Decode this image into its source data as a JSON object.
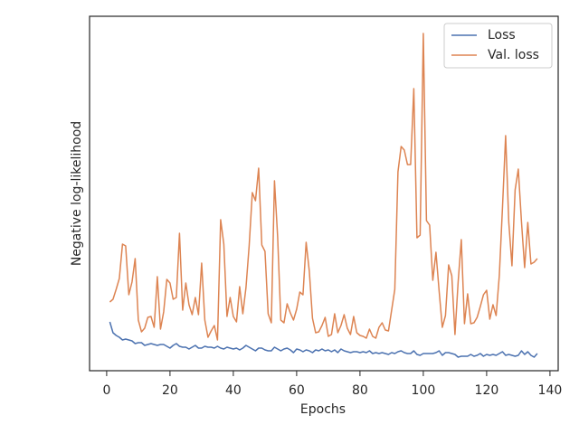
{
  "chart_data": {
    "type": "line",
    "x_label": "Epochs",
    "y_label": "Negative log-likelihood",
    "x": [
      1,
      2,
      3,
      4,
      5,
      6,
      7,
      8,
      9,
      10,
      11,
      12,
      13,
      14,
      15,
      16,
      17,
      18,
      19,
      20,
      21,
      22,
      23,
      24,
      25,
      26,
      27,
      28,
      29,
      30,
      31,
      32,
      33,
      34,
      35,
      36,
      37,
      38,
      39,
      40,
      41,
      42,
      43,
      44,
      45,
      46,
      47,
      48,
      49,
      50,
      51,
      52,
      53,
      54,
      55,
      56,
      57,
      58,
      59,
      60,
      61,
      62,
      63,
      64,
      65,
      66,
      67,
      68,
      69,
      70,
      71,
      72,
      73,
      74,
      75,
      76,
      77,
      78,
      79,
      80,
      81,
      82,
      83,
      84,
      85,
      86,
      87,
      88,
      89,
      90,
      91,
      92,
      93,
      94,
      95,
      96,
      97,
      98,
      99,
      100,
      101,
      102,
      103,
      104,
      105,
      106,
      107,
      108,
      109,
      110,
      111,
      112,
      113,
      114,
      115,
      116,
      117,
      118,
      119,
      120,
      121,
      122,
      123,
      124,
      125,
      126,
      127,
      128,
      129,
      130,
      131,
      132,
      133,
      134,
      135,
      136
    ],
    "series": [
      {
        "name": "Loss",
        "color": "#4c72b0",
        "values": [
          54,
          42,
          39,
          37,
          34,
          35,
          34,
          33,
          30,
          31,
          31,
          28,
          29,
          30,
          29,
          28,
          29,
          29,
          27,
          25,
          28,
          30,
          27,
          26,
          26,
          24,
          26,
          28,
          25,
          25,
          27,
          26,
          26,
          25,
          27,
          25,
          24,
          26,
          25,
          24,
          25,
          23,
          25,
          28,
          26,
          24,
          22,
          25,
          25,
          23,
          22,
          22,
          26,
          24,
          22,
          24,
          25,
          23,
          20,
          24,
          23,
          21,
          23,
          22,
          20,
          23,
          22,
          24,
          22,
          23,
          21,
          23,
          20,
          24,
          22,
          21,
          20,
          21,
          21,
          20,
          21,
          20,
          22,
          19,
          20,
          19,
          20,
          19,
          18,
          20,
          19,
          21,
          22,
          20,
          19,
          19,
          22,
          18,
          17,
          19,
          19,
          19,
          19,
          20,
          22,
          17,
          20,
          20,
          19,
          18,
          15,
          16,
          16,
          16,
          18,
          16,
          17,
          19,
          16,
          18,
          17,
          18,
          17,
          19,
          21,
          17,
          18,
          17,
          16,
          17,
          22,
          18,
          21,
          17,
          15,
          19
        ]
      },
      {
        "name": "Val. loss",
        "color": "#dd8452",
        "values": [
          76,
          79,
          90,
          102,
          140,
          138,
          84,
          98,
          124,
          56,
          43,
          47,
          59,
          60,
          48,
          104,
          46,
          65,
          101,
          97,
          79,
          81,
          152,
          67,
          97,
          73,
          62,
          81,
          62,
          119,
          56,
          37,
          44,
          50,
          34,
          167,
          140,
          60,
          81,
          60,
          54,
          93,
          63,
          92,
          138,
          197,
          188,
          224,
          139,
          132,
          63,
          53,
          210,
          148,
          56,
          53,
          74,
          64,
          56,
          68,
          87,
          84,
          142,
          110,
          58,
          42,
          43,
          50,
          59,
          38,
          40,
          63,
          42,
          50,
          62,
          47,
          40,
          60,
          42,
          39,
          38,
          36,
          46,
          38,
          36,
          48,
          53,
          45,
          44,
          67,
          90,
          220,
          248,
          244,
          228,
          228,
          312,
          147,
          150,
          373,
          166,
          161,
          100,
          131,
          88,
          48,
          61,
          117,
          105,
          40,
          98,
          145,
          52,
          85,
          52,
          53,
          59,
          71,
          84,
          89,
          57,
          73,
          61,
          105,
          180,
          260,
          164,
          116,
          200,
          223,
          165,
          114,
          164,
          118,
          120,
          124
        ]
      }
    ],
    "xlim": [
      -5.4,
      142.6
    ],
    "xticks": [
      0,
      20,
      40,
      60,
      80,
      100,
      120,
      140
    ],
    "ylim": [
      0,
      392
    ],
    "legend": "upper right"
  }
}
